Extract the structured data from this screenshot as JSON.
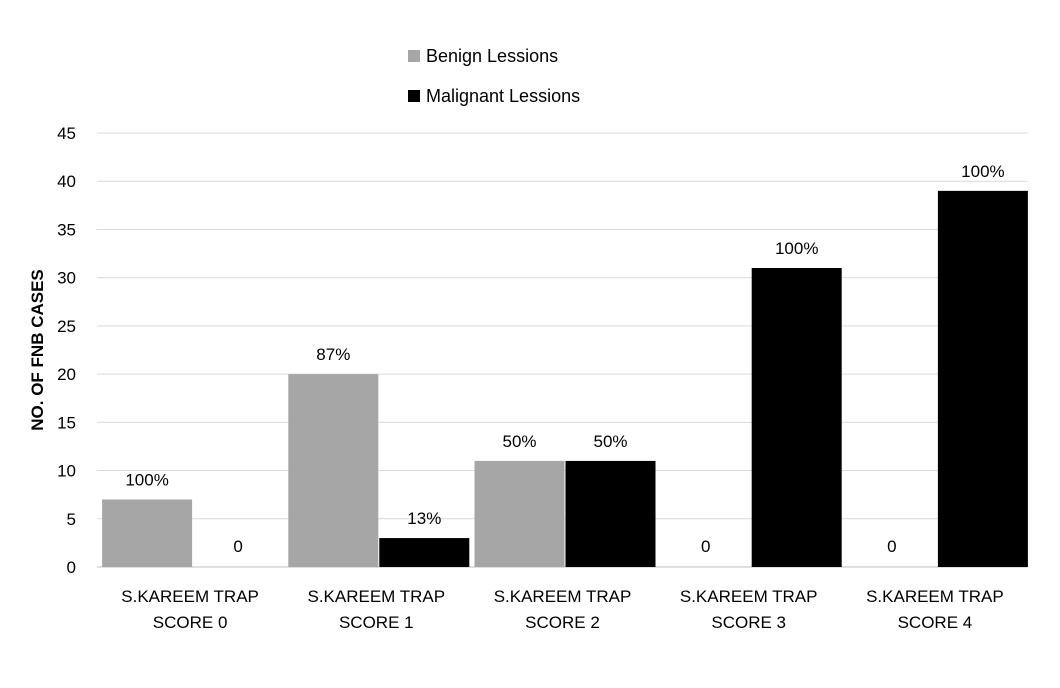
{
  "chart_data": {
    "type": "bar",
    "title": "",
    "xlabel": "",
    "ylabel": "NO. OF FNB CASES",
    "ylim": [
      0,
      45
    ],
    "yticks": [
      0,
      5,
      10,
      15,
      20,
      25,
      30,
      35,
      40,
      45
    ],
    "grid": true,
    "legend_position": "top-center",
    "categories": [
      [
        "S.KAREEM TRAP",
        "SCORE 0"
      ],
      [
        "S.KAREEM TRAP",
        "SCORE 1"
      ],
      [
        "S.KAREEM TRAP",
        "SCORE 2"
      ],
      [
        "S.KAREEM TRAP",
        "SCORE 3"
      ],
      [
        "S.KAREEM TRAP",
        "SCORE 4"
      ]
    ],
    "series": [
      {
        "name": "Benign Lessions",
        "color": "#a6a6a6",
        "values": [
          7,
          20,
          11,
          0,
          0
        ],
        "data_labels": [
          "100%",
          "87%",
          "50%",
          "0",
          "0"
        ]
      },
      {
        "name": "Malignant Lessions",
        "color": "#000000",
        "values": [
          0,
          3,
          11,
          31,
          39
        ],
        "data_labels": [
          "0",
          "13%",
          "50%",
          "100%",
          "100%"
        ]
      }
    ]
  }
}
